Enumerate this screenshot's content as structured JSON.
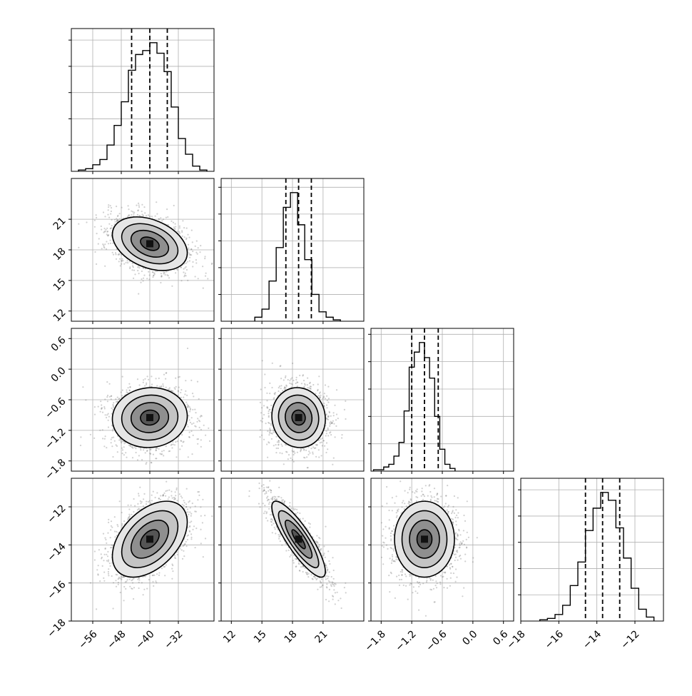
{
  "chart_data": {
    "type": "corner",
    "grid": true,
    "parameters": [
      {
        "id": "p1",
        "range": [
          -62,
          -22
        ],
        "ticks": [
          -56,
          -48,
          -40,
          -32
        ],
        "tick_labels": [
          "−56",
          "−48",
          "−40",
          "−32"
        ],
        "quantiles": [
          -45.1,
          -40.0,
          -35.1
        ],
        "hist": {
          "edges": [
            -60,
            -58,
            -56,
            -54,
            -52,
            -50,
            -48,
            -46,
            -44,
            -42,
            -40,
            -38,
            -36,
            -34,
            -32,
            -30,
            -28,
            -26,
            -24
          ],
          "counts": [
            1,
            2,
            5,
            9,
            20,
            35,
            53,
            77,
            89,
            92,
            98,
            90,
            76,
            49,
            25,
            13,
            4,
            1
          ]
        }
      },
      {
        "id": "p2",
        "range": [
          11.0,
          25.0
        ],
        "ticks": [
          12,
          15,
          18,
          21
        ],
        "tick_labels": [
          "12",
          "15",
          "18",
          "21"
        ],
        "quantiles": [
          17.35,
          18.6,
          19.85
        ],
        "hist": {
          "edges": [
            14.3,
            15.0,
            15.7,
            16.4,
            17.1,
            17.8,
            18.5,
            19.2,
            19.9,
            20.6,
            21.3,
            22.0,
            22.7
          ],
          "counts": [
            3,
            9,
            30,
            55,
            85,
            96,
            72,
            46,
            20,
            7,
            3,
            1
          ]
        }
      },
      {
        "id": "p3",
        "range": [
          -2.0,
          0.8
        ],
        "ticks": [
          -1.8,
          -1.2,
          -0.6,
          0.0,
          0.6
        ],
        "tick_labels": [
          "−1.8",
          "−1.2",
          "−0.6",
          "0.0",
          "0.6"
        ],
        "quantiles": [
          -1.2,
          -0.95,
          -0.68
        ],
        "hist": {
          "edges": [
            -1.95,
            -1.85,
            -1.75,
            -1.65,
            -1.55,
            -1.45,
            -1.35,
            -1.25,
            -1.15,
            -1.05,
            -0.95,
            -0.85,
            -0.75,
            -0.65,
            -0.55,
            -0.45,
            -0.35
          ],
          "counts": [
            1,
            1,
            3,
            5,
            11,
            21,
            44,
            76,
            87,
            94,
            83,
            68,
            40,
            16,
            5,
            2
          ]
        }
      },
      {
        "id": "p4",
        "range": [
          -18.0,
          -10.5
        ],
        "ticks": [
          -18,
          -16,
          -14,
          -12
        ],
        "tick_labels": [
          "−18",
          "−16",
          "−14",
          "−12"
        ],
        "quantiles": [
          -14.6,
          -13.7,
          -12.8
        ],
        "hist": {
          "edges": [
            -17.0,
            -16.6,
            -16.2,
            -15.8,
            -15.4,
            -15.0,
            -14.6,
            -14.2,
            -13.8,
            -13.4,
            -13.0,
            -12.6,
            -12.2,
            -11.8,
            -11.4,
            -11.0
          ],
          "counts": [
            1,
            2,
            5,
            12,
            27,
            45,
            69,
            86,
            98,
            92,
            71,
            48,
            25,
            9,
            3
          ]
        }
      }
    ],
    "pairs": [
      {
        "row": 1,
        "col": 0,
        "mean": [
          -40,
          18.6
        ],
        "sd": [
          5,
          1.25
        ],
        "rho": -0.35
      },
      {
        "row": 2,
        "col": 0,
        "mean": [
          -40,
          -0.95
        ],
        "sd": [
          5,
          0.28
        ],
        "rho": 0.05
      },
      {
        "row": 2,
        "col": 1,
        "mean": [
          18.6,
          -0.95
        ],
        "sd": [
          1.25,
          0.28
        ],
        "rho": -0.05
      },
      {
        "row": 3,
        "col": 0,
        "mean": [
          -40,
          -13.7
        ],
        "sd": [
          5,
          0.95
        ],
        "rho": 0.45
      },
      {
        "row": 3,
        "col": 1,
        "mean": [
          18.6,
          -13.7
        ],
        "sd": [
          1.25,
          0.95
        ],
        "rho": -0.85
      },
      {
        "row": 3,
        "col": 2,
        "mean": [
          -0.95,
          -13.7
        ],
        "sd": [
          0.28,
          0.95
        ],
        "rho": 0.0
      }
    ],
    "contour_levels_sigma": [
      0.5,
      1.0,
      1.5,
      2.0
    ]
  }
}
